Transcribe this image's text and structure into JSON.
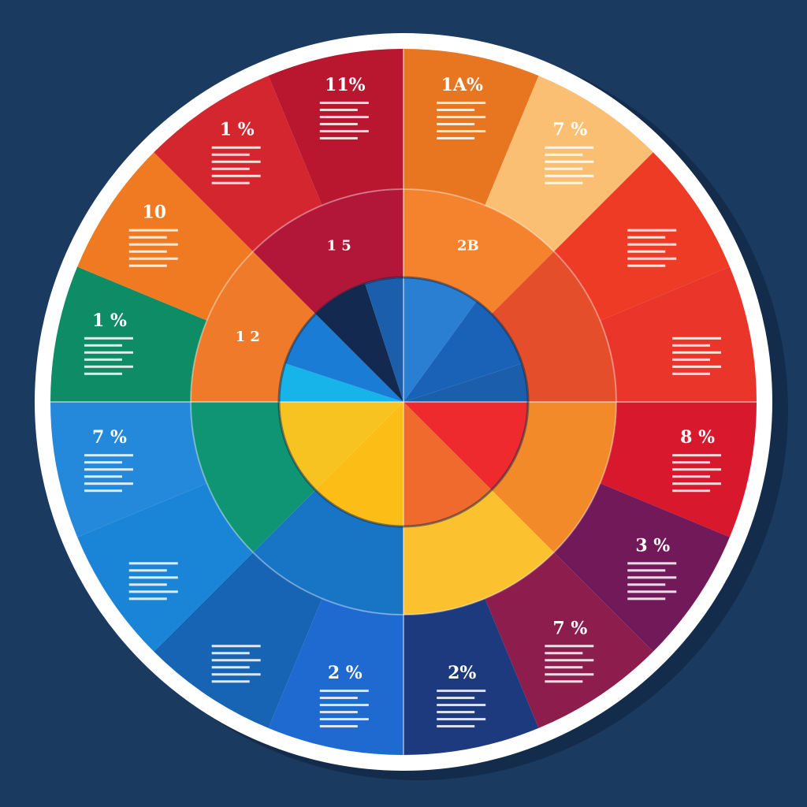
{
  "theme": {
    "background": "#1b3a60",
    "ring_border": "#ffffff",
    "text_line_color": "#ffffff",
    "divider_color": "#ffffff"
  },
  "chart_data": {
    "type": "pie",
    "title": "",
    "rings": [
      {
        "name": "",
        "role": "outer",
        "segments": [
          {
            "share": 0.0625,
            "color": "#e8751f",
            "label": "1A%"
          },
          {
            "share": 0.0625,
            "color": "#fbbf73",
            "label": "7 %"
          },
          {
            "share": 0.0625,
            "color": "#ee3b26",
            "label": ""
          },
          {
            "share": 0.0625,
            "color": "#e9352a",
            "label": ""
          },
          {
            "share": 0.0625,
            "color": "#d8182c",
            "label": "8 %"
          },
          {
            "share": 0.0625,
            "color": "#72195a",
            "label": "3 %"
          },
          {
            "share": 0.0625,
            "color": "#8c1d4d",
            "label": "7 %"
          },
          {
            "share": 0.0625,
            "color": "#1e3a7e",
            "label": "2%"
          },
          {
            "share": 0.0625,
            "color": "#1f6ad0",
            "label": "2 %"
          },
          {
            "share": 0.0625,
            "color": "#1764b4",
            "label": ""
          },
          {
            "share": 0.0625,
            "color": "#1a85d7",
            "label": ""
          },
          {
            "share": 0.0625,
            "color": "#2488db",
            "label": "7 %"
          },
          {
            "share": 0.0625,
            "color": "#0e8c66",
            "label": "1 %"
          },
          {
            "share": 0.0625,
            "color": "#f07a22",
            "label": "10"
          },
          {
            "share": 0.0625,
            "color": "#d3262f",
            "label": "1 %"
          },
          {
            "share": 0.0625,
            "color": "#b8172f",
            "label": "11%"
          }
        ]
      },
      {
        "name": "",
        "role": "middle",
        "segments": [
          {
            "share": 0.125,
            "color": "#f5822c",
            "label": "2B"
          },
          {
            "share": 0.125,
            "color": "#e44e2a",
            "label": ""
          },
          {
            "share": 0.125,
            "color": "#f28a2a",
            "label": ""
          },
          {
            "share": 0.125,
            "color": "#fbc12e",
            "label": ""
          },
          {
            "share": 0.125,
            "color": "#1875c6",
            "label": ""
          },
          {
            "share": 0.125,
            "color": "#0f9573",
            "label": ""
          },
          {
            "share": 0.125,
            "color": "#ef7b2a",
            "label": "1 2"
          },
          {
            "share": 0.125,
            "color": "#b2173a",
            "label": "1 5"
          }
        ]
      },
      {
        "name": "",
        "role": "inner",
        "segments": [
          {
            "share": 0.1,
            "color": "#2a7fd2"
          },
          {
            "share": 0.1,
            "color": "#1a62b8"
          },
          {
            "share": 0.05,
            "color": "#1b5eab"
          },
          {
            "share": 0.125,
            "color": "#ee2a2f"
          },
          {
            "share": 0.125,
            "color": "#f06a2d"
          },
          {
            "share": 0.125,
            "color": "#fbbd16"
          },
          {
            "share": 0.125,
            "color": "#f7c321"
          },
          {
            "share": 0.05,
            "color": "#16b4e8"
          },
          {
            "share": 0.075,
            "color": "#1a7cd4"
          },
          {
            "share": 0.075,
            "color": "#13294f"
          },
          {
            "share": 0.05,
            "color": "#1b5eab"
          }
        ]
      }
    ]
  }
}
